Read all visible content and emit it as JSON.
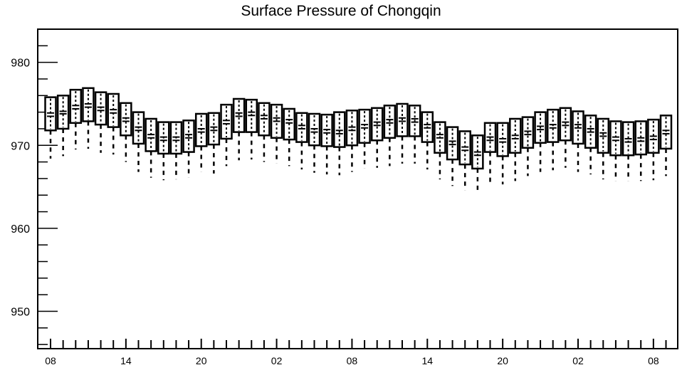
{
  "chart_data": {
    "type": "box",
    "title": "Surface Pressure of Chongqin",
    "xlabel": "",
    "ylabel": "",
    "ylim": [
      945.5,
      984
    ],
    "y_ticks": [
      "950",
      "960",
      "970",
      "980"
    ],
    "x_tick_labels": [
      "08",
      "14",
      "20",
      "02",
      "08",
      "14",
      "20",
      "02",
      "08"
    ],
    "box_series": {
      "median": [
        973.5,
        973.8,
        974.4,
        974.6,
        974.2,
        973.9,
        972.9,
        971.8,
        970.9,
        970.6,
        970.6,
        970.9,
        971.6,
        971.8,
        972.6,
        973.5,
        973.6,
        973.2,
        972.9,
        972.7,
        972.0,
        971.6,
        971.5,
        971.4,
        971.8,
        972.1,
        972.4,
        972.7,
        972.9,
        972.8,
        972.1,
        970.9,
        970.1,
        969.4,
        968.8,
        970.6,
        970.4,
        970.8,
        971.3,
        971.9,
        972.1,
        972.4,
        972.1,
        971.6,
        971.1,
        970.6,
        970.4,
        970.5,
        970.7,
        971.4
      ],
      "mean": [
        973.9,
        974.1,
        974.8,
        975.0,
        974.6,
        974.3,
        973.3,
        972.2,
        971.3,
        971.0,
        971.0,
        971.3,
        972.0,
        972.2,
        973.0,
        973.9,
        974.0,
        973.6,
        973.3,
        973.1,
        972.4,
        972.0,
        971.9,
        971.8,
        972.2,
        972.5,
        972.8,
        973.1,
        973.3,
        973.2,
        972.5,
        971.3,
        970.5,
        969.8,
        969.2,
        971.0,
        970.8,
        971.2,
        971.7,
        972.3,
        972.5,
        972.8,
        972.5,
        972.0,
        971.5,
        971.0,
        970.8,
        970.9,
        971.1,
        971.8
      ],
      "q1": [
        971.8,
        972.0,
        972.7,
        972.9,
        972.5,
        972.2,
        971.2,
        970.2,
        969.3,
        969.0,
        969.0,
        969.2,
        969.9,
        970.1,
        970.8,
        971.6,
        971.6,
        971.2,
        970.9,
        970.7,
        970.4,
        970.0,
        969.9,
        969.8,
        970.0,
        970.3,
        970.6,
        970.9,
        971.1,
        971.1,
        970.4,
        969.1,
        968.3,
        967.7,
        967.2,
        969.2,
        968.7,
        969.1,
        969.7,
        970.3,
        970.4,
        970.6,
        970.2,
        969.7,
        969.1,
        968.8,
        968.8,
        968.9,
        969.1,
        969.6
      ],
      "q3": [
        975.8,
        976.0,
        976.7,
        976.9,
        976.4,
        976.2,
        975.1,
        974.0,
        973.2,
        972.8,
        972.8,
        973.0,
        973.8,
        973.9,
        974.9,
        975.6,
        975.5,
        975.1,
        974.9,
        974.4,
        973.9,
        973.8,
        973.7,
        974.0,
        974.2,
        974.3,
        974.5,
        974.8,
        975.0,
        974.8,
        974.0,
        972.8,
        972.2,
        971.7,
        971.2,
        972.7,
        972.7,
        973.2,
        973.4,
        974.0,
        974.3,
        974.5,
        974.1,
        973.6,
        973.2,
        972.9,
        972.8,
        972.9,
        973.1,
        973.6
      ],
      "whisker_low": [
        968.4,
        968.7,
        969.5,
        969.6,
        969.1,
        968.9,
        968.0,
        966.8,
        966.1,
        965.8,
        965.9,
        966.1,
        966.8,
        966.6,
        967.5,
        968.2,
        968.3,
        968.0,
        967.8,
        967.5,
        967.1,
        966.7,
        966.5,
        966.4,
        966.8,
        967.2,
        967.3,
        967.5,
        967.8,
        967.8,
        967.1,
        965.9,
        965.1,
        964.6,
        964.3,
        965.6,
        965.3,
        965.7,
        966.3,
        966.8,
        967.0,
        967.3,
        966.8,
        966.5,
        965.9,
        965.7,
        965.7,
        965.7,
        965.8,
        966.3
      ]
    }
  }
}
